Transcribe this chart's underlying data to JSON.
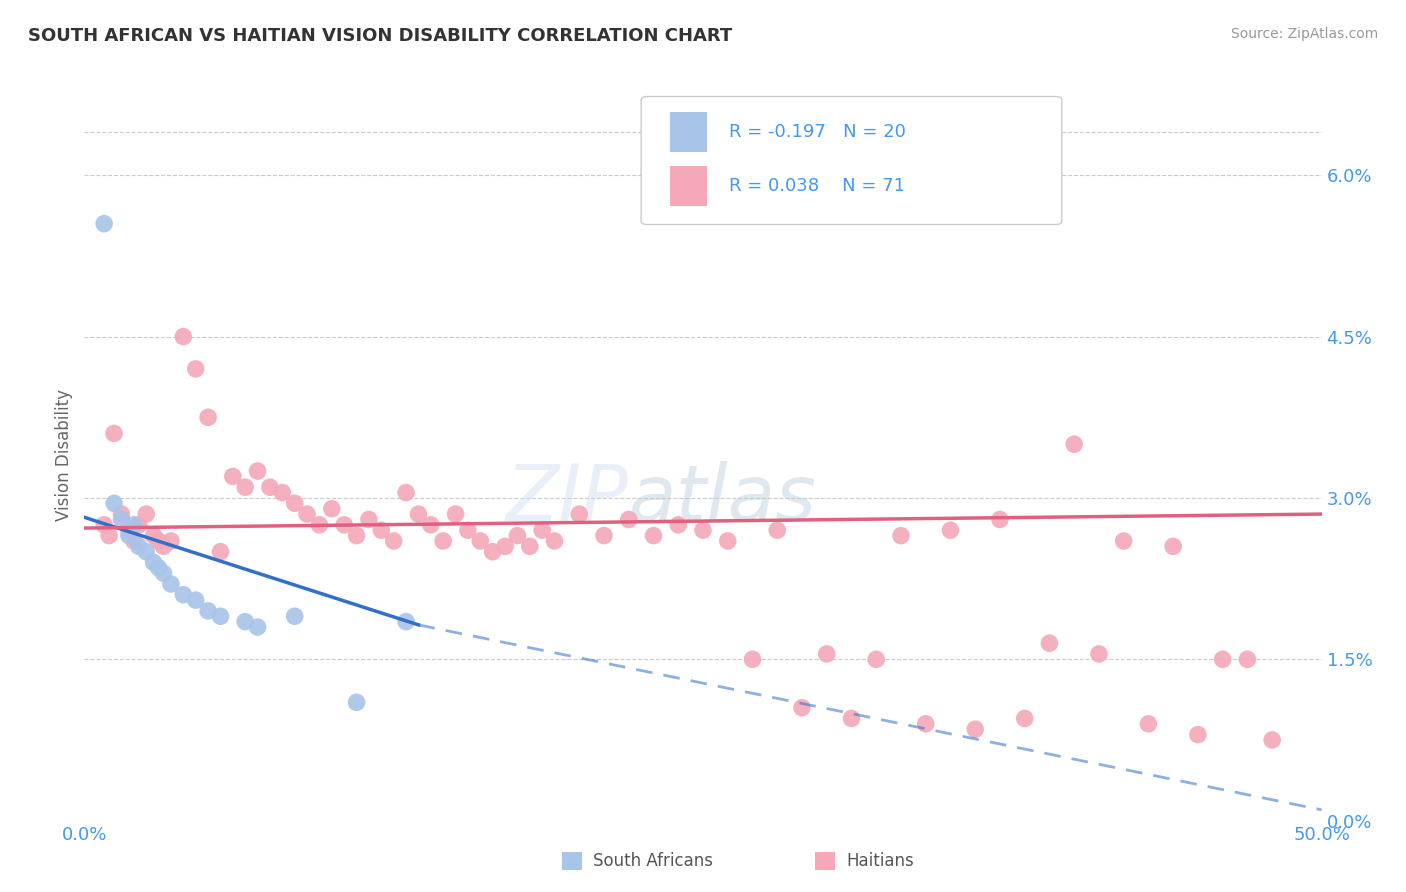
{
  "title": "SOUTH AFRICAN VS HAITIAN VISION DISABILITY CORRELATION CHART",
  "source": "Source: ZipAtlas.com",
  "ylabel": "Vision Disability",
  "ylabel_right_vals": [
    0.0,
    1.5,
    3.0,
    4.5,
    6.0
  ],
  "xmin": 0.0,
  "xmax": 50.0,
  "ymin": 0.0,
  "ymax": 6.8,
  "ytop_line": 6.4,
  "legend_blue_label": "South Africans",
  "legend_pink_label": "Haitians",
  "r_blue": -0.197,
  "n_blue": 20,
  "r_pink": 0.038,
  "n_pink": 71,
  "blue_color": "#a8c4e8",
  "pink_color": "#f4a8b8",
  "blue_line_color": "#3070c8",
  "pink_line_color": "#e06080",
  "blue_points": [
    [
      0.8,
      5.55
    ],
    [
      1.2,
      2.95
    ],
    [
      1.5,
      2.8
    ],
    [
      1.8,
      2.65
    ],
    [
      2.0,
      2.75
    ],
    [
      2.2,
      2.55
    ],
    [
      2.5,
      2.5
    ],
    [
      2.8,
      2.4
    ],
    [
      3.0,
      2.35
    ],
    [
      3.2,
      2.3
    ],
    [
      3.5,
      2.2
    ],
    [
      4.0,
      2.1
    ],
    [
      4.5,
      2.05
    ],
    [
      5.0,
      1.95
    ],
    [
      5.5,
      1.9
    ],
    [
      6.5,
      1.85
    ],
    [
      7.0,
      1.8
    ],
    [
      8.5,
      1.9
    ],
    [
      11.0,
      1.1
    ],
    [
      13.0,
      1.85
    ]
  ],
  "pink_points": [
    [
      0.8,
      2.75
    ],
    [
      1.0,
      2.65
    ],
    [
      1.2,
      3.6
    ],
    [
      1.5,
      2.85
    ],
    [
      1.8,
      2.7
    ],
    [
      2.0,
      2.6
    ],
    [
      2.2,
      2.75
    ],
    [
      2.5,
      2.85
    ],
    [
      2.8,
      2.65
    ],
    [
      3.0,
      2.6
    ],
    [
      3.2,
      2.55
    ],
    [
      3.5,
      2.6
    ],
    [
      4.0,
      4.5
    ],
    [
      4.5,
      4.2
    ],
    [
      5.0,
      3.75
    ],
    [
      5.5,
      2.5
    ],
    [
      6.0,
      3.2
    ],
    [
      6.5,
      3.1
    ],
    [
      7.0,
      3.25
    ],
    [
      7.5,
      3.1
    ],
    [
      8.0,
      3.05
    ],
    [
      8.5,
      2.95
    ],
    [
      9.0,
      2.85
    ],
    [
      9.5,
      2.75
    ],
    [
      10.0,
      2.9
    ],
    [
      10.5,
      2.75
    ],
    [
      11.0,
      2.65
    ],
    [
      11.5,
      2.8
    ],
    [
      12.0,
      2.7
    ],
    [
      12.5,
      2.6
    ],
    [
      13.0,
      3.05
    ],
    [
      13.5,
      2.85
    ],
    [
      14.0,
      2.75
    ],
    [
      14.5,
      2.6
    ],
    [
      15.0,
      2.85
    ],
    [
      15.5,
      2.7
    ],
    [
      16.0,
      2.6
    ],
    [
      16.5,
      2.5
    ],
    [
      17.0,
      2.55
    ],
    [
      17.5,
      2.65
    ],
    [
      18.0,
      2.55
    ],
    [
      18.5,
      2.7
    ],
    [
      19.0,
      2.6
    ],
    [
      20.0,
      2.85
    ],
    [
      21.0,
      2.65
    ],
    [
      22.0,
      2.8
    ],
    [
      23.0,
      2.65
    ],
    [
      24.0,
      2.75
    ],
    [
      25.0,
      2.7
    ],
    [
      26.0,
      2.6
    ],
    [
      28.0,
      2.7
    ],
    [
      30.0,
      1.55
    ],
    [
      32.0,
      1.5
    ],
    [
      33.0,
      2.65
    ],
    [
      35.0,
      2.7
    ],
    [
      37.0,
      2.8
    ],
    [
      39.0,
      1.65
    ],
    [
      40.0,
      3.5
    ],
    [
      42.0,
      2.6
    ],
    [
      44.0,
      2.55
    ],
    [
      46.0,
      1.5
    ],
    [
      29.0,
      1.05
    ],
    [
      31.0,
      0.95
    ],
    [
      34.0,
      0.9
    ],
    [
      36.0,
      0.85
    ],
    [
      38.0,
      0.95
    ],
    [
      43.0,
      0.9
    ],
    [
      45.0,
      0.8
    ],
    [
      48.0,
      0.75
    ],
    [
      27.0,
      1.5
    ],
    [
      41.0,
      1.55
    ],
    [
      47.0,
      1.5
    ]
  ],
  "blue_line_x_start": 0.0,
  "blue_line_x_solid_end": 13.5,
  "blue_line_x_dashed_end": 50.0,
  "blue_line_y_start": 2.82,
  "blue_line_y_solid_end": 1.82,
  "blue_line_y_dashed_end": 0.1,
  "pink_line_x_start": 0.0,
  "pink_line_x_end": 50.0,
  "pink_line_y_start": 2.72,
  "pink_line_y_end": 2.85
}
